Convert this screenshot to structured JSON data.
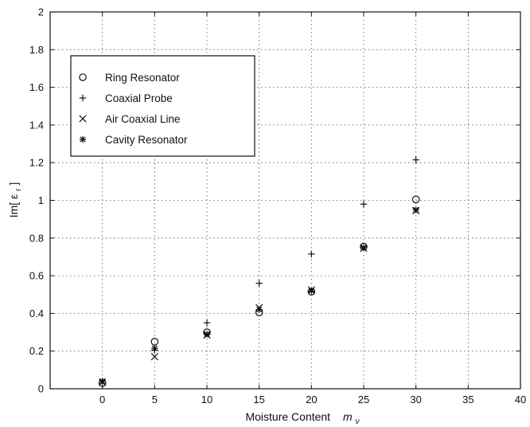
{
  "chart_data": {
    "type": "scatter",
    "xlabel": "Moisture Content",
    "xlabel_symbol": "m",
    "xlabel_subscript": "v",
    "ylabel": "Im[ ε",
    "ylabel_subscript": "r",
    "ylabel_close": " ]",
    "xlim": [
      -5,
      40
    ],
    "ylim": [
      0,
      2
    ],
    "xticks": [
      0,
      5,
      10,
      15,
      20,
      25,
      30,
      35,
      40
    ],
    "yticks": [
      0,
      0.2,
      0.4,
      0.6,
      0.8,
      1,
      1.2,
      1.4,
      1.6,
      1.8,
      2
    ],
    "grid": true,
    "legend_position": "upper-left",
    "series": [
      {
        "name": "Ring Resonator",
        "marker": "circle",
        "x": [
          0,
          5,
          10,
          15,
          20,
          25,
          30
        ],
        "y": [
          0.03,
          0.25,
          0.3,
          0.405,
          0.515,
          0.755,
          1.005
        ]
      },
      {
        "name": "Coaxial Probe",
        "marker": "plus",
        "x": [
          0,
          5,
          10,
          15,
          20,
          25,
          30
        ],
        "y": [
          0.04,
          0.205,
          0.35,
          0.56,
          0.715,
          0.98,
          1.215
        ]
      },
      {
        "name": "Air Coaxial Line",
        "marker": "x",
        "x": [
          0,
          5,
          10,
          15,
          20,
          25,
          30
        ],
        "y": [
          0.035,
          0.17,
          0.285,
          0.43,
          0.525,
          0.745,
          0.945
        ]
      },
      {
        "name": "Cavity Resonator",
        "marker": "asterisk",
        "x": [
          0,
          5,
          10,
          15,
          20,
          25,
          30
        ],
        "y": [
          0.04,
          0.215,
          0.29,
          0.42,
          0.52,
          0.75,
          0.95
        ]
      }
    ]
  }
}
